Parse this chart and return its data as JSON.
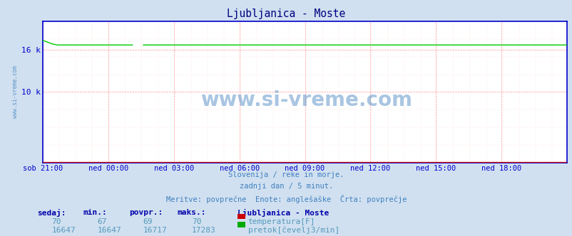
{
  "title": "Ljubljanica - Moste",
  "title_color": "#000080",
  "bg_color": "#d0e0f0",
  "plot_bg_color": "#ffffff",
  "x_labels": [
    "sob 21:00",
    "ned 00:00",
    "ned 03:00",
    "ned 06:00",
    "ned 09:00",
    "ned 12:00",
    "ned 15:00",
    "ned 18:00"
  ],
  "ylim": [
    0,
    20000
  ],
  "watermark": "www.si-vreme.com",
  "watermark_color": "#4080c0",
  "subtitle_lines": [
    "Slovenija / reke in morje.",
    "zadnji dan / 5 minut.",
    "Meritve: povprečne  Enote: anglešaške  Črta: povprečje"
  ],
  "subtitle_color": "#4080c0",
  "legend_title": "Ljubljanica - Moste",
  "legend_entries": [
    {
      "label": "temperatura[F]",
      "color": "#cc0000"
    },
    {
      "label": "pretok[čevelj3/min]",
      "color": "#00aa00"
    }
  ],
  "stats_headers": [
    "sedaj:",
    "min.:",
    "povpr.:",
    "maks.:"
  ],
  "stats_row1": [
    "70",
    "67",
    "69",
    "70"
  ],
  "stats_row2": [
    "16647",
    "16647",
    "16717",
    "17283"
  ],
  "n_points": 288,
  "temp_line_color": "#cc0000",
  "flow_line_color": "#00cc00",
  "axis_color": "#0000cc",
  "grid_color_major": "#ff9999",
  "grid_color_minor": "#ffcccc",
  "frame_color": "#0000cc",
  "header_color": "#0000aa",
  "val_color": "#5599bb"
}
